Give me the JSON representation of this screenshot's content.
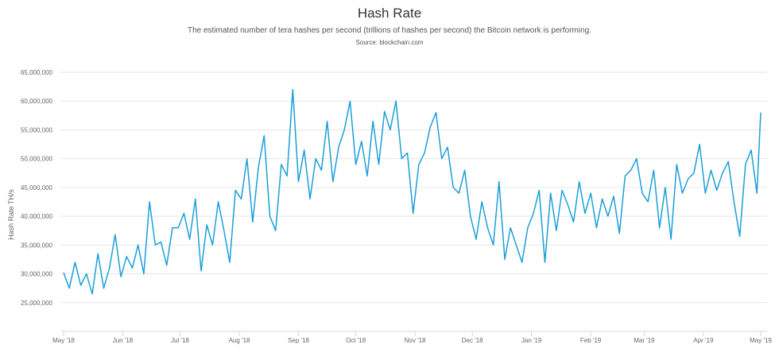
{
  "chart_data": {
    "type": "line",
    "title": "Hash Rate",
    "subtitle": "The estimated number of tera hashes per second (trillions of hashes per second) the Bitcoin network is performing.",
    "source": "Source: blockchain.com",
    "xlabel": "",
    "ylabel": "Hash Rate TH/s",
    "ylim": [
      20000000,
      65000000
    ],
    "xlim": [
      "2018-05-01",
      "2019-05-01"
    ],
    "grid": true,
    "line_color": "#1a9fd9",
    "y_ticks": [
      {
        "value": 25000000,
        "label": "25,000,000"
      },
      {
        "value": 30000000,
        "label": "30,000,000"
      },
      {
        "value": 35000000,
        "label": "35,000,000"
      },
      {
        "value": 40000000,
        "label": "40,000,000"
      },
      {
        "value": 45000000,
        "label": "45,000,000"
      },
      {
        "value": 50000000,
        "label": "50,000,000"
      },
      {
        "value": 55000000,
        "label": "55,000,000"
      },
      {
        "value": 60000000,
        "label": "60,000,000"
      },
      {
        "value": 65000000,
        "label": "65,000,000"
      }
    ],
    "x_ticks": [
      {
        "value": "2018-05-01",
        "label": "May '18"
      },
      {
        "value": "2018-06-01",
        "label": "Jun '18"
      },
      {
        "value": "2018-07-01",
        "label": "Jul '18"
      },
      {
        "value": "2018-08-01",
        "label": "Aug '18"
      },
      {
        "value": "2018-09-01",
        "label": "Sep '18"
      },
      {
        "value": "2018-10-01",
        "label": "Oct '18"
      },
      {
        "value": "2018-11-01",
        "label": "Nov '18"
      },
      {
        "value": "2018-12-01",
        "label": "Dec '18"
      },
      {
        "value": "2019-01-01",
        "label": "Jan '19"
      },
      {
        "value": "2019-02-01",
        "label": "Feb '19"
      },
      {
        "value": "2019-03-01",
        "label": "Mar '19"
      },
      {
        "value": "2019-04-01",
        "label": "Apr '19"
      },
      {
        "value": "2019-05-01",
        "label": "May '19"
      }
    ],
    "series": [
      {
        "x": [
          "2018-05-01",
          "2018-05-04",
          "2018-05-07",
          "2018-05-10",
          "2018-05-13",
          "2018-05-16",
          "2018-05-19",
          "2018-05-22",
          "2018-05-25",
          "2018-05-28",
          "2018-05-31",
          "2018-06-03",
          "2018-06-06",
          "2018-06-09",
          "2018-06-12",
          "2018-06-15",
          "2018-06-18",
          "2018-06-21",
          "2018-06-24",
          "2018-06-27",
          "2018-06-30",
          "2018-07-03",
          "2018-07-06",
          "2018-07-09",
          "2018-07-12",
          "2018-07-15",
          "2018-07-18",
          "2018-07-21",
          "2018-07-24",
          "2018-07-27",
          "2018-07-30",
          "2018-08-02",
          "2018-08-05",
          "2018-08-08",
          "2018-08-11",
          "2018-08-14",
          "2018-08-17",
          "2018-08-20",
          "2018-08-23",
          "2018-08-26",
          "2018-08-29",
          "2018-09-01",
          "2018-09-04",
          "2018-09-07",
          "2018-09-10",
          "2018-09-13",
          "2018-09-16",
          "2018-09-19",
          "2018-09-22",
          "2018-09-25",
          "2018-09-28",
          "2018-10-01",
          "2018-10-04",
          "2018-10-07",
          "2018-10-10",
          "2018-10-13",
          "2018-10-16",
          "2018-10-19",
          "2018-10-22",
          "2018-10-25",
          "2018-10-28",
          "2018-10-31",
          "2018-11-03",
          "2018-11-06",
          "2018-11-09",
          "2018-11-12",
          "2018-11-15",
          "2018-11-18",
          "2018-11-21",
          "2018-11-24",
          "2018-11-27",
          "2018-11-30",
          "2018-12-03",
          "2018-12-06",
          "2018-12-09",
          "2018-12-12",
          "2018-12-15",
          "2018-12-18",
          "2018-12-21",
          "2018-12-24",
          "2018-12-27",
          "2018-12-30",
          "2019-01-02",
          "2019-01-05",
          "2019-01-08",
          "2019-01-11",
          "2019-01-14",
          "2019-01-17",
          "2019-01-20",
          "2019-01-23",
          "2019-01-26",
          "2019-01-29",
          "2019-02-01",
          "2019-02-04",
          "2019-02-07",
          "2019-02-10",
          "2019-02-13",
          "2019-02-16",
          "2019-02-19",
          "2019-02-22",
          "2019-02-25",
          "2019-02-28",
          "2019-03-03",
          "2019-03-06",
          "2019-03-09",
          "2019-03-12",
          "2019-03-15",
          "2019-03-18",
          "2019-03-21",
          "2019-03-24",
          "2019-03-27",
          "2019-03-30",
          "2019-04-02",
          "2019-04-05",
          "2019-04-08",
          "2019-04-11",
          "2019-04-14",
          "2019-04-17",
          "2019-04-20",
          "2019-04-23",
          "2019-04-26",
          "2019-04-29",
          "2019-05-01"
        ],
        "y": [
          30200000,
          27500000,
          32000000,
          28000000,
          30000000,
          26500000,
          33500000,
          27500000,
          31000000,
          36800000,
          29500000,
          33000000,
          31000000,
          35000000,
          30000000,
          42500000,
          35000000,
          35500000,
          31500000,
          38000000,
          38000000,
          40500000,
          36000000,
          43000000,
          30500000,
          38500000,
          35000000,
          42500000,
          37500000,
          32000000,
          44500000,
          43000000,
          50000000,
          39000000,
          48500000,
          54000000,
          40000000,
          37500000,
          49000000,
          47000000,
          62000000,
          46000000,
          51500000,
          43000000,
          50000000,
          48000000,
          56500000,
          46000000,
          52000000,
          55000000,
          60000000,
          49000000,
          53000000,
          47000000,
          56500000,
          49000000,
          58200000,
          55000000,
          60000000,
          50000000,
          51000000,
          40500000,
          49000000,
          51000000,
          55500000,
          58000000,
          50000000,
          52000000,
          45000000,
          44000000,
          48000000,
          40000000,
          36000000,
          42500000,
          38000000,
          35000000,
          46000000,
          32500000,
          38000000,
          35000000,
          32000000,
          38000000,
          40500000,
          44500000,
          32000000,
          44000000,
          37500000,
          44500000,
          42000000,
          39000000,
          46000000,
          40500000,
          44000000,
          38000000,
          43000000,
          40000000,
          43500000,
          37000000,
          47000000,
          48000000,
          50000000,
          44000000,
          42500000,
          48000000,
          38000000,
          45000000,
          36000000,
          49000000,
          44000000,
          46500000,
          47500000,
          52500000,
          44000000,
          48000000,
          44500000,
          47500000,
          49500000,
          42500000,
          36500000,
          49000000,
          51500000,
          44000000,
          58000000
        ]
      }
    ]
  }
}
